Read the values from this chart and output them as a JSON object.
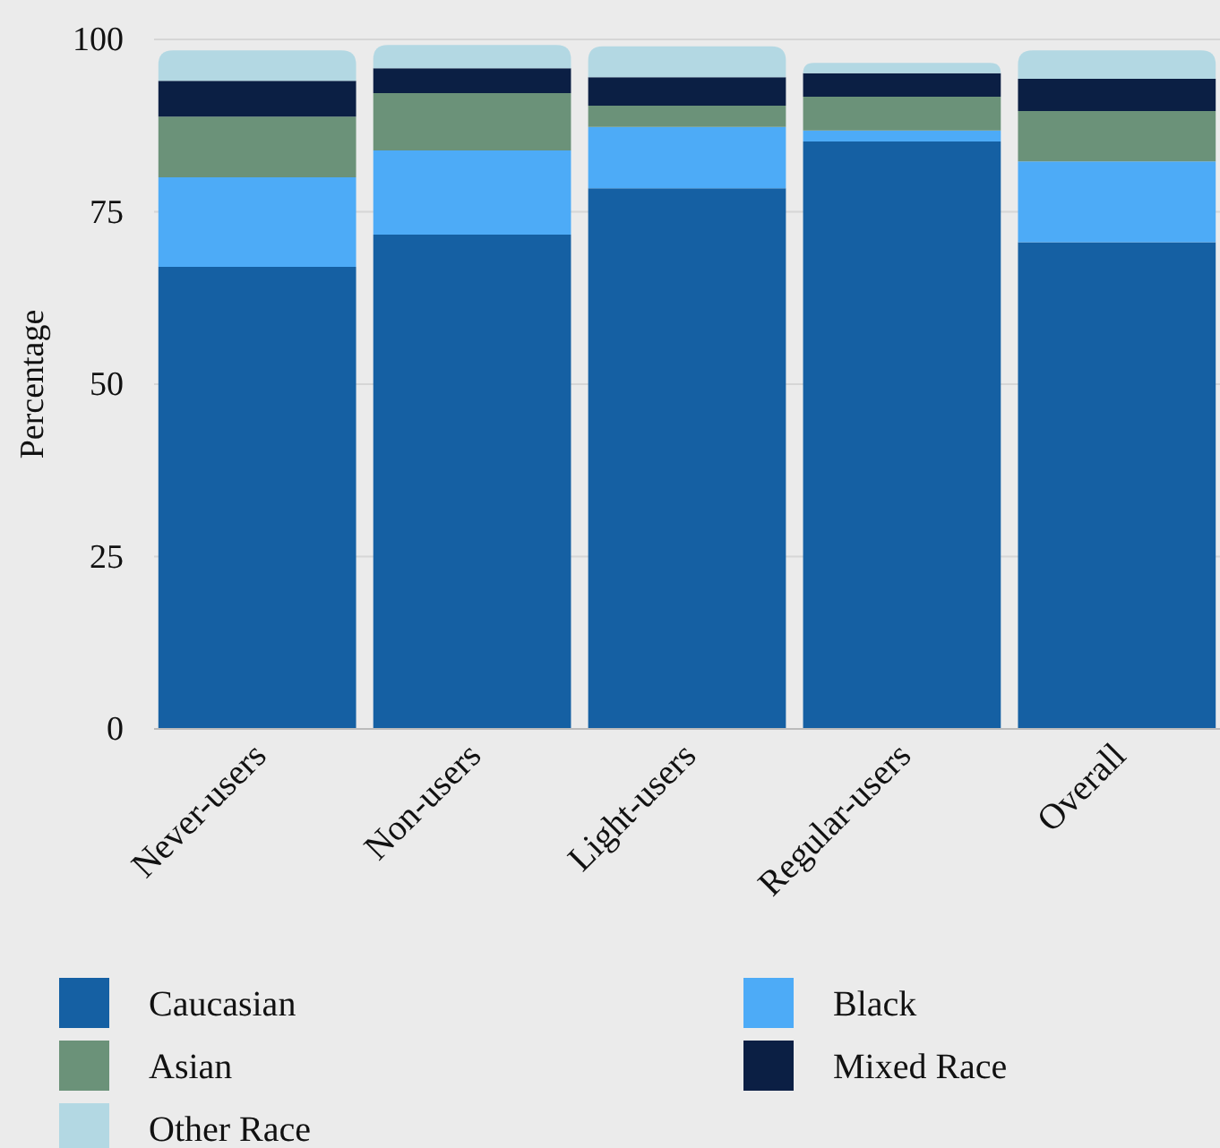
{
  "chart_data": {
    "type": "bar",
    "stacked": true,
    "ylabel": "Percentage",
    "categories": [
      "Never-users",
      "Non-users",
      "Light-users",
      "Regular-users",
      "Overall"
    ],
    "series": [
      {
        "name": "Caucasian",
        "color": "#1560a3",
        "values": [
          67.0,
          71.7,
          78.4,
          85.2,
          70.6
        ]
      },
      {
        "name": "Black",
        "color": "#4dabf7",
        "values": [
          13.0,
          12.2,
          8.9,
          1.6,
          11.7
        ]
      },
      {
        "name": "Asian",
        "color": "#6b9279",
        "values": [
          8.8,
          8.3,
          3.1,
          4.9,
          7.3
        ]
      },
      {
        "name": "Mixed Race",
        "color": "#0b1f44",
        "values": [
          5.2,
          3.6,
          4.1,
          3.4,
          4.7
        ]
      },
      {
        "name": "Other Race",
        "color": "#b3d8e3",
        "values": [
          4.4,
          3.4,
          4.5,
          1.5,
          4.1
        ]
      }
    ],
    "ylim": [
      0,
      100
    ],
    "yticks": [
      0,
      25,
      50,
      75,
      100
    ],
    "grid": "y",
    "legend": "bottom"
  }
}
